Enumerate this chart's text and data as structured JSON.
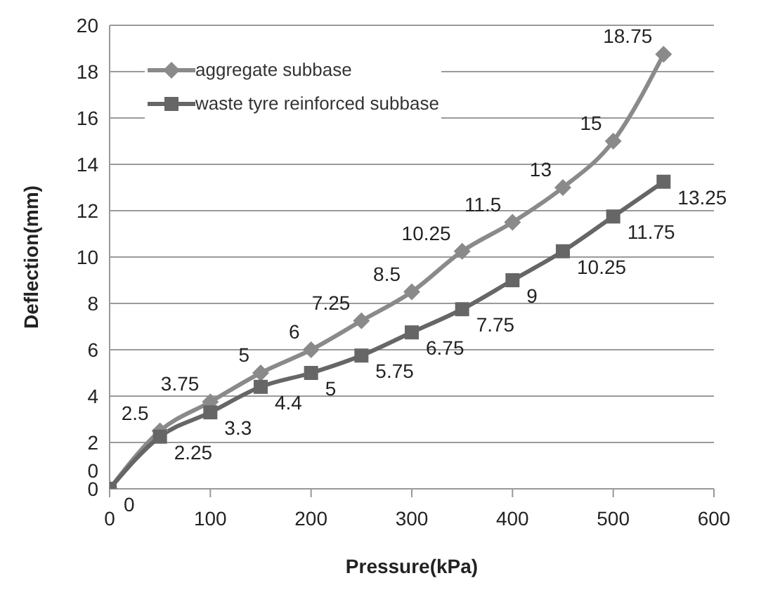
{
  "chart_data": {
    "type": "line",
    "xlabel": "Pressure(kPa)",
    "ylabel": "Deflection(mm)",
    "x": [
      0,
      50,
      100,
      150,
      200,
      250,
      300,
      350,
      400,
      450,
      500,
      550
    ],
    "series": [
      {
        "name": "aggregate subbase",
        "color": "#8a8a8a",
        "marker": "diamond",
        "values": [
          0,
          2.5,
          3.75,
          5,
          6,
          7.25,
          8.5,
          10.25,
          11.5,
          13,
          15,
          18.75
        ]
      },
      {
        "name": "waste tyre reinforced subbase",
        "color": "#666666",
        "marker": "square",
        "values": [
          0,
          2.25,
          3.3,
          4.4,
          5,
          5.75,
          6.75,
          7.75,
          9,
          10.25,
          11.75,
          13.25
        ]
      }
    ],
    "xlim": [
      0,
      600
    ],
    "xticks": [
      0,
      100,
      200,
      300,
      400,
      500,
      600
    ],
    "ylim": [
      0,
      20
    ],
    "yticks": [
      0,
      2,
      4,
      6,
      8,
      10,
      12,
      14,
      16,
      18,
      20
    ],
    "grid": "y",
    "legend": "top left",
    "data_labels": true
  }
}
